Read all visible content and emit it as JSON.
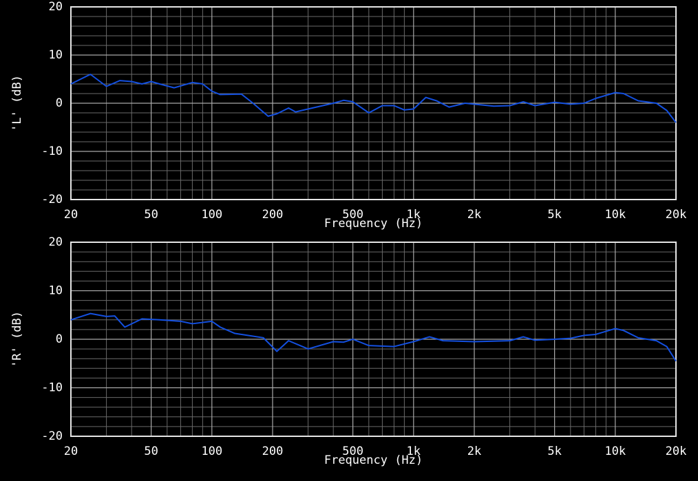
{
  "chart_data": [
    {
      "type": "line",
      "ylabel": "'L' (dB)",
      "xlabel": "Frequency (Hz)",
      "xscale": "log",
      "grid": true,
      "xlim": [
        20,
        20000
      ],
      "xticks": [
        20,
        50,
        100,
        200,
        500,
        {
          "value": 1000,
          "label": "1k"
        },
        {
          "value": 2000,
          "label": "2k"
        },
        {
          "value": 5000,
          "label": "5k"
        },
        {
          "value": 10000,
          "label": "10k"
        },
        {
          "value": 20000,
          "label": "20k"
        }
      ],
      "ylim": [
        -20,
        20
      ],
      "yticks": [
        -20,
        -10,
        0,
        10,
        20
      ],
      "x": [
        20,
        25,
        30,
        35,
        40,
        45,
        50,
        55,
        65,
        80,
        90,
        100,
        110,
        140,
        160,
        190,
        210,
        240,
        260,
        300,
        400,
        450,
        500,
        600,
        700,
        800,
        900,
        1000,
        1150,
        1300,
        1500,
        1800,
        2500,
        3000,
        3500,
        4000,
        5000,
        6000,
        7000,
        8000,
        10000,
        11000,
        13000,
        16000,
        18000,
        20000
      ],
      "series": [
        {
          "color": "#1450e0",
          "values": [
            4,
            6,
            3.5,
            4.7,
            4.5,
            4,
            4.5,
            4,
            3.2,
            4.3,
            4,
            2.5,
            1.8,
            1.9,
            0,
            -2.7,
            -2.2,
            -1,
            -1.8,
            -1.2,
            0,
            0.6,
            0.3,
            -2,
            -0.5,
            -0.5,
            -1.4,
            -1.2,
            1.2,
            0.5,
            -0.8,
            0,
            -0.6,
            -0.5,
            0.3,
            -0.5,
            0.2,
            -0.2,
            0,
            1,
            2.2,
            2,
            0.5,
            0,
            -1.5,
            -4
          ]
        }
      ]
    },
    {
      "type": "line",
      "ylabel": "'R' (dB)",
      "xlabel": "Frequency (Hz)",
      "xscale": "log",
      "grid": true,
      "xlim": [
        20,
        20000
      ],
      "xticks": [
        20,
        50,
        100,
        200,
        500,
        {
          "value": 1000,
          "label": "1k"
        },
        {
          "value": 2000,
          "label": "2k"
        },
        {
          "value": 5000,
          "label": "5k"
        },
        {
          "value": 10000,
          "label": "10k"
        },
        {
          "value": 20000,
          "label": "20k"
        }
      ],
      "ylim": [
        -20,
        20
      ],
      "yticks": [
        -20,
        -10,
        0,
        10,
        20
      ],
      "x": [
        20,
        25,
        30,
        33,
        37,
        45,
        55,
        70,
        80,
        100,
        110,
        130,
        180,
        210,
        240,
        300,
        400,
        450,
        500,
        600,
        800,
        1000,
        1200,
        1400,
        2000,
        3000,
        3500,
        4000,
        5000,
        6000,
        7000,
        8000,
        10000,
        11000,
        13000,
        16000,
        18000,
        20000
      ],
      "series": [
        {
          "color": "#1450e0",
          "values": [
            4,
            5.3,
            4.7,
            4.8,
            2.5,
            4.2,
            4,
            3.7,
            3.2,
            3.7,
            2.5,
            1.2,
            0.3,
            -2.5,
            -0.3,
            -2,
            -0.5,
            -0.6,
            0,
            -1.3,
            -1.5,
            -0.5,
            0.5,
            -0.3,
            -0.5,
            -0.3,
            0.5,
            -0.2,
            0,
            0.2,
            0.8,
            1,
            2.2,
            1.8,
            0.3,
            -0.3,
            -1.5,
            -4.5
          ]
        }
      ]
    }
  ]
}
